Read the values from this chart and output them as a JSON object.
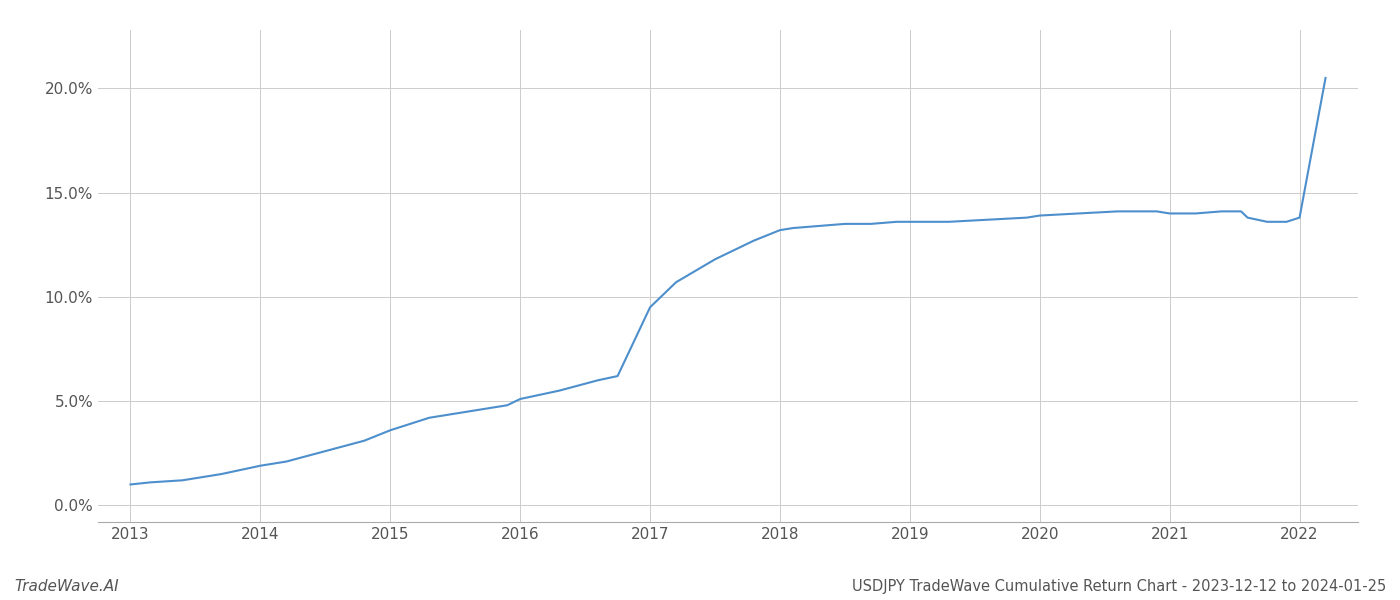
{
  "x_years": [
    2013.0,
    2013.15,
    2013.4,
    2013.7,
    2014.0,
    2014.2,
    2014.5,
    2014.8,
    2015.0,
    2015.3,
    2015.6,
    2015.9,
    2016.0,
    2016.3,
    2016.6,
    2016.75,
    2017.0,
    2017.2,
    2017.5,
    2017.8,
    2018.0,
    2018.1,
    2018.3,
    2018.5,
    2018.7,
    2018.9,
    2019.0,
    2019.3,
    2019.6,
    2019.9,
    2020.0,
    2020.3,
    2020.6,
    2020.9,
    2021.0,
    2021.2,
    2021.4,
    2021.55,
    2021.6,
    2021.75,
    2021.9,
    2022.0,
    2022.2
  ],
  "y_values": [
    0.01,
    0.011,
    0.012,
    0.015,
    0.019,
    0.021,
    0.026,
    0.031,
    0.036,
    0.042,
    0.045,
    0.048,
    0.051,
    0.055,
    0.06,
    0.062,
    0.095,
    0.107,
    0.118,
    0.127,
    0.132,
    0.133,
    0.134,
    0.135,
    0.135,
    0.136,
    0.136,
    0.136,
    0.137,
    0.138,
    0.139,
    0.14,
    0.141,
    0.141,
    0.14,
    0.14,
    0.141,
    0.141,
    0.138,
    0.136,
    0.136,
    0.138,
    0.205
  ],
  "line_color": "#4d8fcc",
  "background_color": "#ffffff",
  "grid_color": "#cccccc",
  "title_text": "USDJPY TradeWave Cumulative Return Chart - 2023-12-12 to 2024-01-25",
  "watermark_text": "TradeWave.AI",
  "x_tick_labels": [
    "2013",
    "2014",
    "2015",
    "2016",
    "2017",
    "2018",
    "2019",
    "2020",
    "2021",
    "2022"
  ],
  "x_tick_positions": [
    2013,
    2014,
    2015,
    2016,
    2017,
    2018,
    2019,
    2020,
    2021,
    2022
  ],
  "y_tick_labels": [
    "0.0%",
    "5.0%",
    "10.0%",
    "15.0%",
    "20.0%"
  ],
  "y_tick_values": [
    0.0,
    0.05,
    0.1,
    0.15,
    0.2
  ],
  "xlim": [
    2012.75,
    2022.45
  ],
  "ylim": [
    -0.008,
    0.228
  ],
  "line_width": 1.5,
  "title_fontsize": 10.5,
  "tick_fontsize": 11,
  "watermark_fontsize": 11,
  "footer_color": "#555555"
}
